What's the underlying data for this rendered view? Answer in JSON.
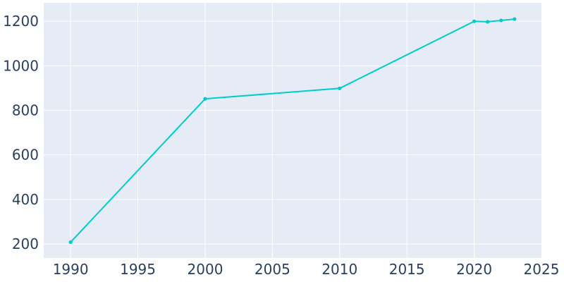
{
  "chart_data": {
    "type": "line",
    "title": "",
    "xlabel": "",
    "ylabel": "",
    "xlim": [
      1988,
      2025
    ],
    "ylim": [
      137,
      1283
    ],
    "grid": true,
    "x_ticks": [
      1990,
      1995,
      2000,
      2005,
      2010,
      2015,
      2020,
      2025
    ],
    "y_ticks": [
      200,
      400,
      600,
      800,
      1000,
      1200
    ],
    "series": [
      {
        "color": "#00cccc",
        "x": [
          1990,
          2000,
          2010,
          2020,
          2021,
          2022,
          2023
        ],
        "y": [
          208,
          852,
          899,
          1200,
          1198,
          1204,
          1210
        ]
      }
    ]
  },
  "colors": {
    "plot_background": "#e5ecf6",
    "grid": "#ffffff",
    "tick_text": "#2a3f5f",
    "line": "#00cccc"
  }
}
